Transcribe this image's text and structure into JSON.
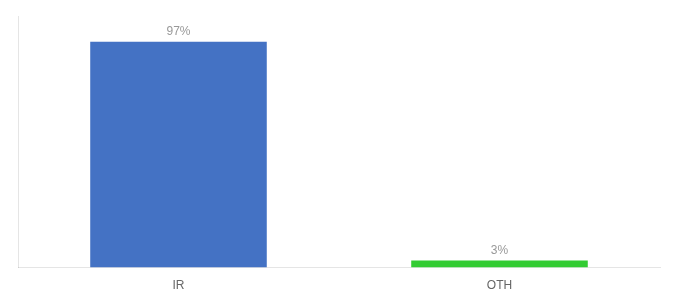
{
  "chart_data": {
    "type": "bar",
    "categories": [
      "IR",
      "OTH"
    ],
    "values": [
      97,
      3
    ],
    "value_labels": [
      "97%",
      "3%"
    ],
    "colors": [
      "#4472c4",
      "#33cc33"
    ],
    "ylim": [
      0,
      108
    ],
    "grid": false,
    "data_labels": true,
    "tick_labels": "x"
  }
}
